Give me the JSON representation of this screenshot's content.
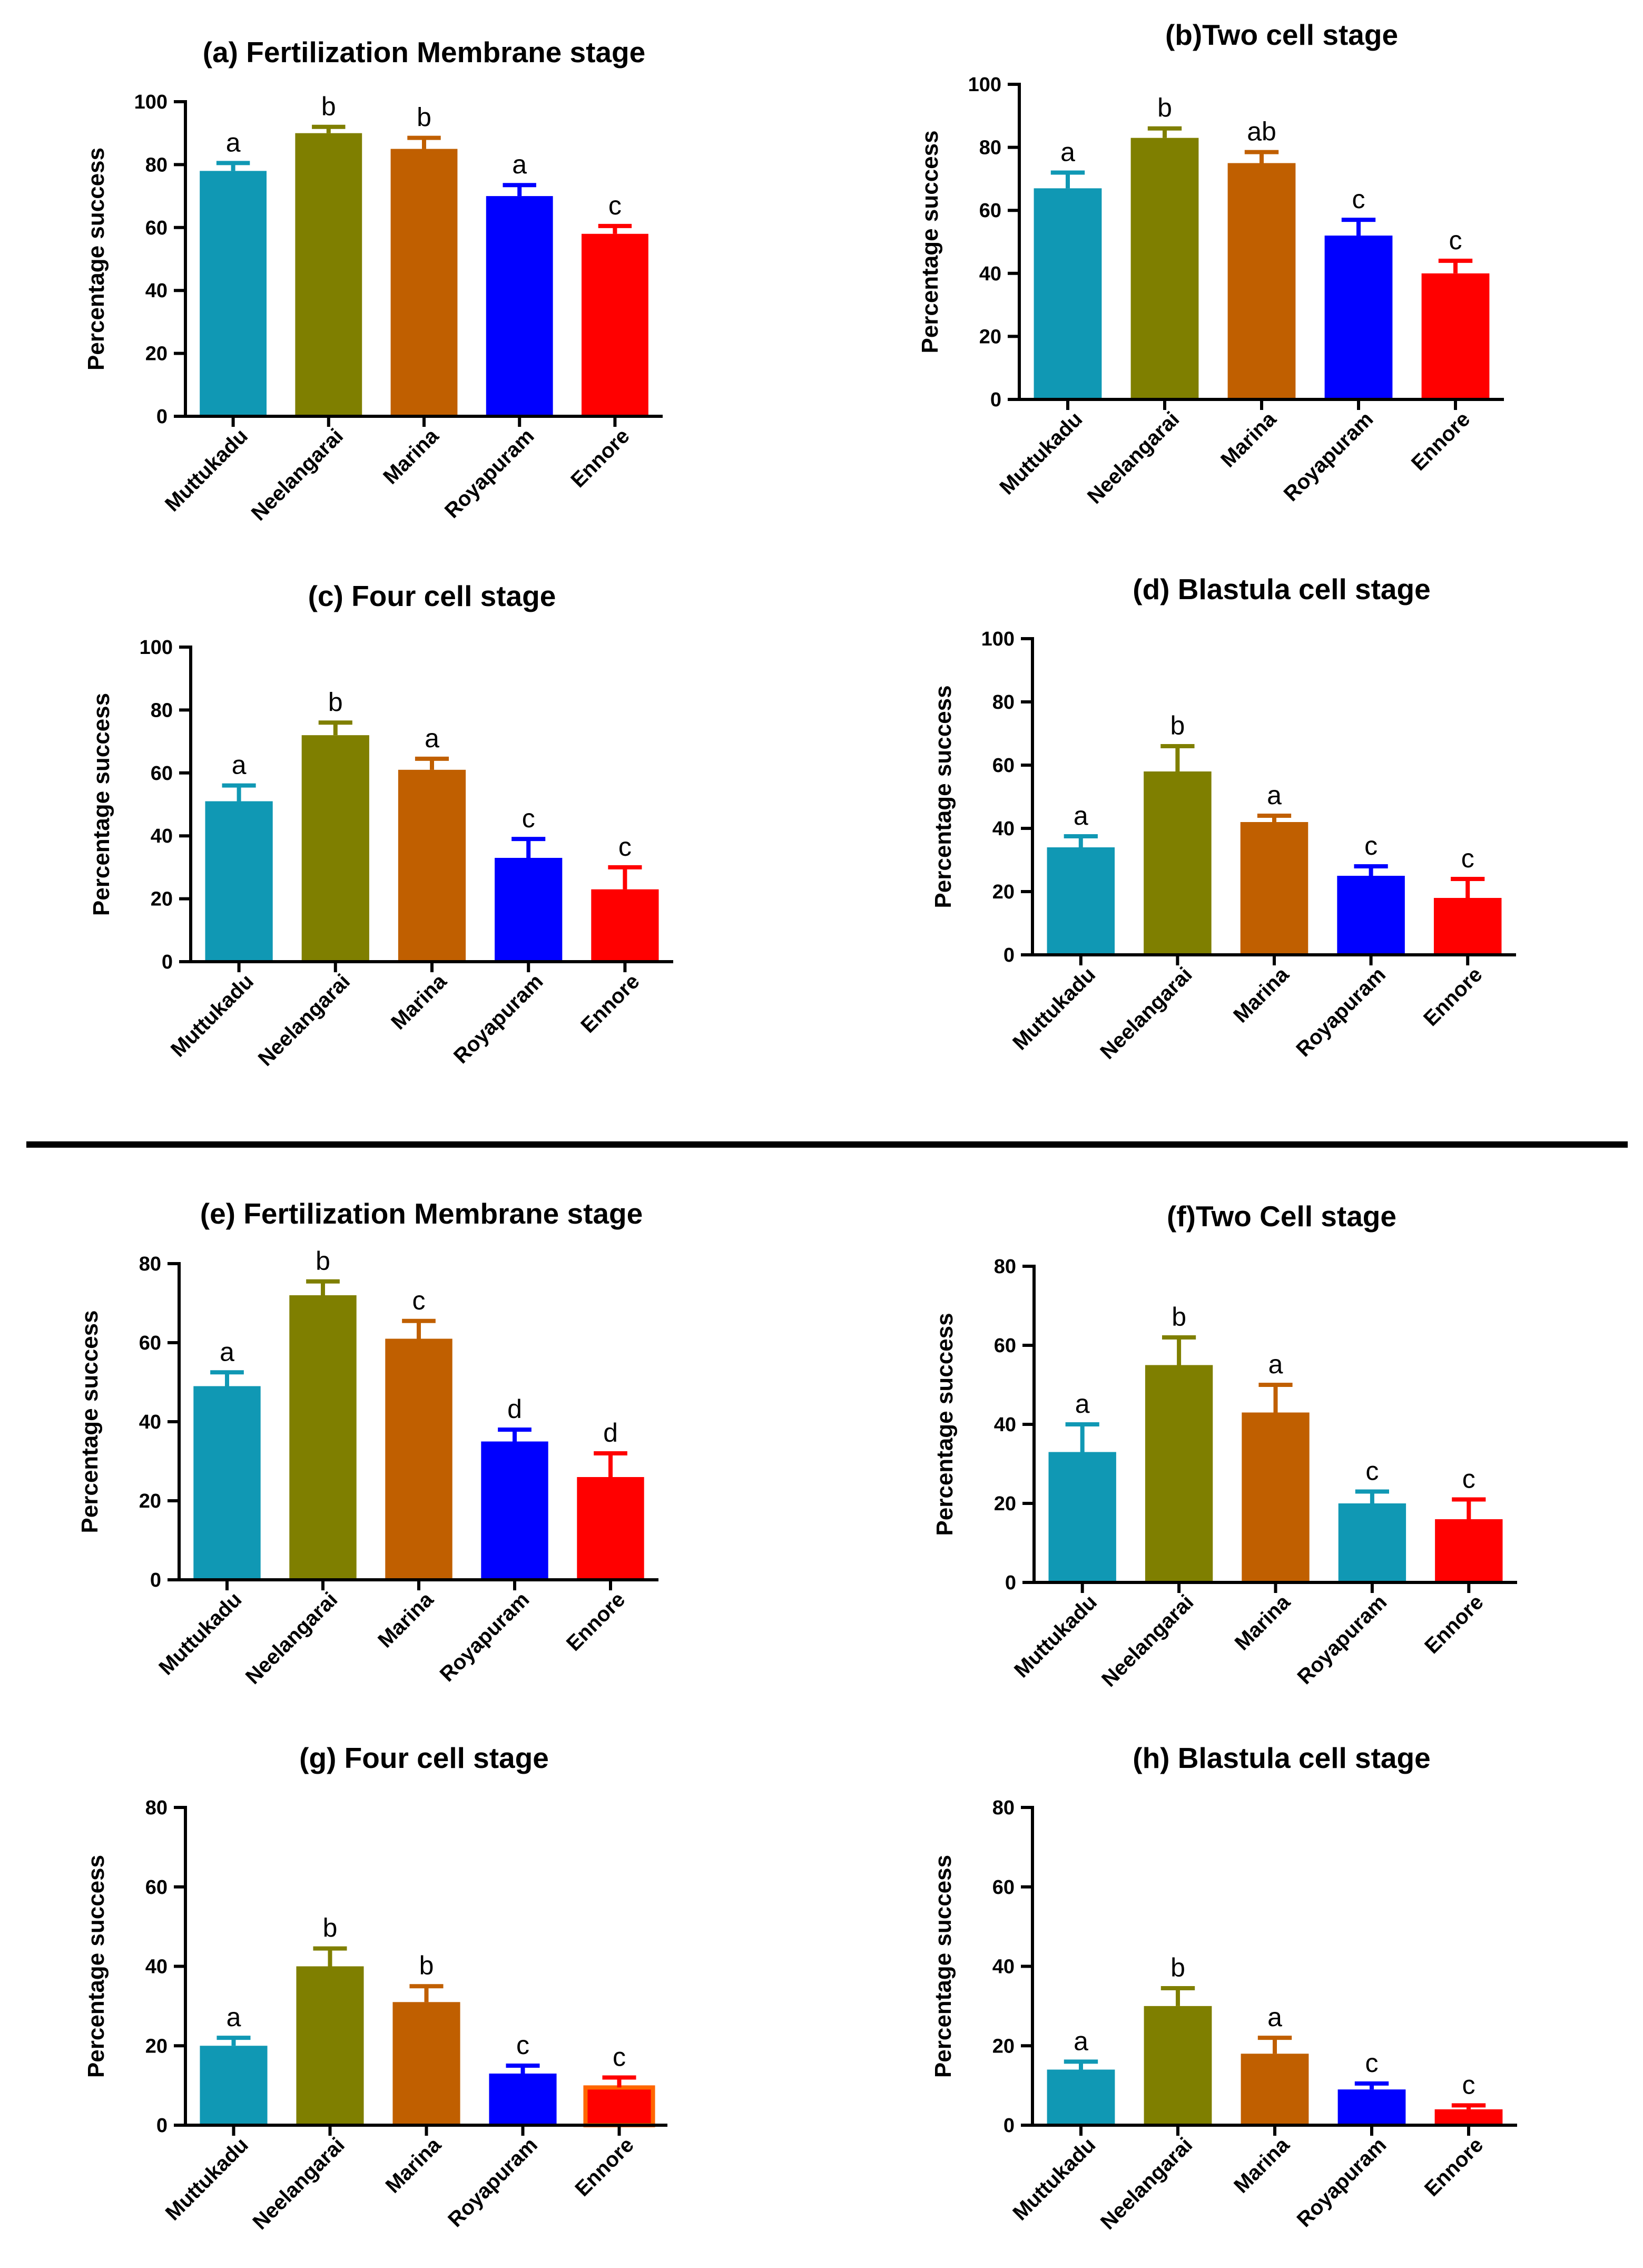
{
  "colors": {
    "Muttukadu": "#1098b4",
    "Neelangarai": "#7f7f00",
    "Marina": "#c05f00",
    "Royapuram": "#0000ff",
    "Ennore": "#ff0000",
    "Ennore_edge": "#ff6600",
    "axis": "#000000"
  },
  "chart_data": [
    {
      "type": "bar",
      "id": "a",
      "title": "(a) Fertilization Membrane stage",
      "xlabel": "",
      "ylabel": "Percentage success",
      "ylim": [
        0,
        100
      ],
      "yticks": [
        0,
        20,
        40,
        60,
        80,
        100
      ],
      "categories": [
        "Muttukadu",
        "Neelangarai",
        "Marina",
        "Royapuram",
        "Ennore"
      ],
      "values": [
        78,
        90,
        85,
        70,
        58
      ],
      "errors": [
        2.5,
        2,
        3.5,
        3.5,
        2.5
      ],
      "letters": [
        "a",
        "b",
        "b",
        "a",
        "c"
      ]
    },
    {
      "type": "bar",
      "id": "b",
      "title": "(b)Two cell stage",
      "xlabel": "",
      "ylabel": "Percentage success",
      "ylim": [
        0,
        100
      ],
      "yticks": [
        0,
        20,
        40,
        60,
        80,
        100
      ],
      "categories": [
        "Muttukadu",
        "Neelangarai",
        "Marina",
        "Royapuram",
        "Ennore"
      ],
      "values": [
        67,
        83,
        75,
        52,
        40
      ],
      "errors": [
        5,
        3,
        3.5,
        5,
        4
      ],
      "letters": [
        "a",
        "b",
        "ab",
        "c",
        "c"
      ]
    },
    {
      "type": "bar",
      "id": "c",
      "title": "(c) Four cell stage",
      "xlabel": "",
      "ylabel": "Percentage success",
      "ylim": [
        0,
        100
      ],
      "yticks": [
        0,
        20,
        40,
        60,
        80,
        100
      ],
      "categories": [
        "Muttukadu",
        "Neelangarai",
        "Marina",
        "Royapuram",
        "Ennore"
      ],
      "values": [
        51,
        72,
        61,
        33,
        23
      ],
      "errors": [
        5,
        4,
        3.5,
        6,
        7
      ],
      "letters": [
        "a",
        "b",
        "a",
        "c",
        "c"
      ]
    },
    {
      "type": "bar",
      "id": "d",
      "title": "(d) Blastula cell stage",
      "xlabel": "",
      "ylabel": "Percentage success",
      "ylim": [
        0,
        100
      ],
      "yticks": [
        0,
        20,
        40,
        60,
        80,
        100
      ],
      "categories": [
        "Muttukadu",
        "Neelangarai",
        "Marina",
        "Royapuram",
        "Ennore"
      ],
      "values": [
        34,
        58,
        42,
        25,
        18
      ],
      "errors": [
        3.5,
        8,
        2,
        3,
        6
      ],
      "letters": [
        "a",
        "b",
        "a",
        "c",
        "c"
      ]
    },
    {
      "type": "bar",
      "id": "e",
      "title": "(e) Fertilization Membrane stage",
      "xlabel": "",
      "ylabel": "Percentage success",
      "ylim": [
        0,
        80
      ],
      "yticks": [
        0,
        20,
        40,
        60,
        80
      ],
      "categories": [
        "Muttukadu",
        "Neelangarai",
        "Marina",
        "Royapuram",
        "Ennore"
      ],
      "values": [
        49,
        72,
        61,
        35,
        26
      ],
      "errors": [
        3.5,
        3.5,
        4.5,
        3,
        6
      ],
      "letters": [
        "a",
        "b",
        "c",
        "d",
        "d"
      ]
    },
    {
      "type": "bar",
      "id": "f",
      "title": "(f)Two Cell stage",
      "xlabel": "",
      "ylabel": "Percentage success",
      "ylim": [
        0,
        80
      ],
      "yticks": [
        0,
        20,
        40,
        60,
        80
      ],
      "categories": [
        "Muttukadu",
        "Neelangarai",
        "Marina",
        "Royapuram",
        "Ennore"
      ],
      "values": [
        33,
        55,
        43,
        20,
        16
      ],
      "errors": [
        7,
        7,
        7,
        3,
        5
      ],
      "letters": [
        "a",
        "b",
        "a",
        "c",
        "c"
      ],
      "colors_override": [
        "#1098b4",
        "#7f7f00",
        "#c05f00",
        "#1098b4",
        "#ff0000"
      ]
    },
    {
      "type": "bar",
      "id": "g",
      "title": "(g) Four cell stage",
      "xlabel": "",
      "ylabel": "Percentage success",
      "ylim": [
        0,
        80
      ],
      "yticks": [
        0,
        20,
        40,
        60,
        80
      ],
      "categories": [
        "Muttukadu",
        "Neelangarai",
        "Marina",
        "Royapuram",
        "Ennore"
      ],
      "values": [
        20,
        40,
        31,
        13,
        9.5
      ],
      "errors": [
        2,
        4.5,
        4,
        2,
        2.5
      ],
      "letters": [
        "a",
        "b",
        "b",
        "c",
        "c"
      ]
    },
    {
      "type": "bar",
      "id": "h",
      "title": "(h) Blastula cell stage",
      "xlabel": "",
      "ylabel": "Percentage success",
      "ylim": [
        0,
        80
      ],
      "yticks": [
        0,
        20,
        40,
        60,
        80
      ],
      "categories": [
        "Muttukadu",
        "Neelangarai",
        "Marina",
        "Royapuram",
        "Ennore"
      ],
      "values": [
        14,
        30,
        18,
        9,
        4
      ],
      "errors": [
        2,
        4.5,
        4,
        1.5,
        1
      ],
      "letters": [
        "a",
        "b",
        "a",
        "c",
        "c"
      ]
    }
  ]
}
